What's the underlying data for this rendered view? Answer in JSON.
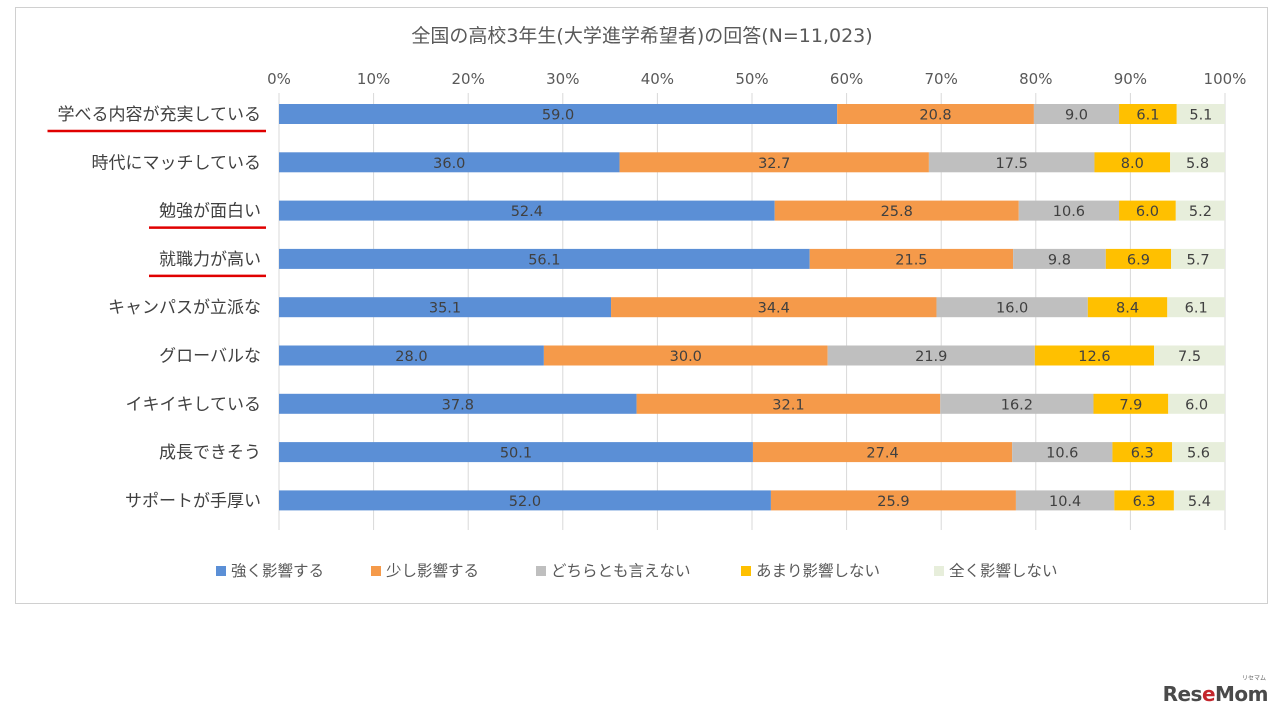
{
  "chart_data": {
    "type": "bar",
    "stacked": true,
    "orientation": "horizontal",
    "title": "全国の高校3年生(大学進学希望者)の回答(N=11,023)",
    "categories": [
      "学べる内容が充実している",
      "時代にマッチしている",
      "勉強が面白い",
      "就職力が高い",
      "キャンパスが立派な",
      "グローバルな",
      "イキイキしている",
      "成長できそう",
      "サポートが手厚い"
    ],
    "underlined_categories": [
      "学べる内容が充実している",
      "勉強が面白い",
      "就職力が高い"
    ],
    "xticks": [
      "0%",
      "10%",
      "20%",
      "30%",
      "40%",
      "50%",
      "60%",
      "70%",
      "80%",
      "90%",
      "100%"
    ],
    "xlim": [
      0,
      100
    ],
    "grid": true,
    "legend_position": "bottom",
    "series": [
      {
        "name": "強く影響する",
        "color": "#5b8fd6",
        "values": [
          59.0,
          36.0,
          52.4,
          56.1,
          35.1,
          28.0,
          37.8,
          50.1,
          52.0
        ]
      },
      {
        "name": "少し影響する",
        "color": "#f59a4a",
        "values": [
          20.8,
          32.7,
          25.8,
          21.5,
          34.4,
          30.0,
          32.1,
          27.4,
          25.9
        ]
      },
      {
        "name": "どちらとも言えない",
        "color": "#bfbfbf",
        "values": [
          9.0,
          17.5,
          10.6,
          9.8,
          16.0,
          21.9,
          16.2,
          10.6,
          10.4
        ]
      },
      {
        "name": "あまり影響しない",
        "color": "#ffc000",
        "values": [
          6.1,
          8.0,
          6.0,
          6.9,
          8.4,
          12.6,
          7.9,
          6.3,
          6.3
        ]
      },
      {
        "name": "全く影響しない",
        "color": "#e7eedb",
        "values": [
          5.1,
          5.8,
          5.2,
          5.7,
          6.1,
          7.5,
          6.0,
          5.6,
          5.4
        ]
      }
    ],
    "data_labels": [
      [
        "59.0",
        "36.0",
        "52.4",
        "56.1",
        "35.1",
        "28.0",
        "37.8",
        "50.1",
        "52.0"
      ],
      [
        "20.8",
        "32.7",
        "25.8",
        "21.5",
        "34.4",
        "30.0",
        "32.1",
        "27.4",
        "25.9"
      ],
      [
        "9.0",
        "17.5",
        "10.6",
        "9.8",
        "16.0",
        "21.9",
        "16.2",
        "10.6",
        "10.4"
      ],
      [
        "6.1",
        "8.0",
        "6.0",
        "6.9",
        "8.4",
        "12.6",
        "7.9",
        "6.3",
        "6.3"
      ],
      [
        "5.1",
        "5.8",
        "5.2",
        "5.7",
        "6.1",
        "7.5",
        "6.0",
        "5.6",
        "5.4"
      ]
    ],
    "label_color": "#404040",
    "underline_color": "#e00000"
  },
  "watermark": {
    "text_pre": "Res",
    "text_o": "e",
    "text_post": "Mom",
    "kana": "リセマム"
  }
}
